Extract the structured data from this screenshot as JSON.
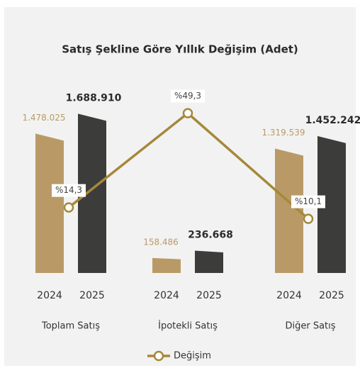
{
  "chart_data": {
    "type": "bar",
    "title": "Satış Şekline Göre Yıllık Değişim (Adet)",
    "categories": [
      "Toplam Satış",
      "İpotekli Satış",
      "Diğer Satış"
    ],
    "series": [
      {
        "name": "2024",
        "color": "#b99a67",
        "values": [
          1478025,
          158486,
          1319539
        ],
        "value_labels": [
          "1.478.025",
          "158.486",
          "1.319.539"
        ]
      },
      {
        "name": "2025",
        "color": "#3c3c3a",
        "values": [
          1688910,
          236668,
          1452242
        ],
        "value_labels": [
          "1.688.910",
          "236.668",
          "1.452.242"
        ]
      },
      {
        "name": "Değişim",
        "type": "line",
        "axis": "y2",
        "color": "#a5883a",
        "values": [
          14.3,
          49.3,
          10.1
        ],
        "value_labels": [
          "%14,3",
          "%49,3",
          "%10,1"
        ]
      }
    ],
    "ylim": [
      0,
      2000000
    ],
    "y2lim": [
      -10,
      60
    ],
    "legend": "bottom"
  }
}
